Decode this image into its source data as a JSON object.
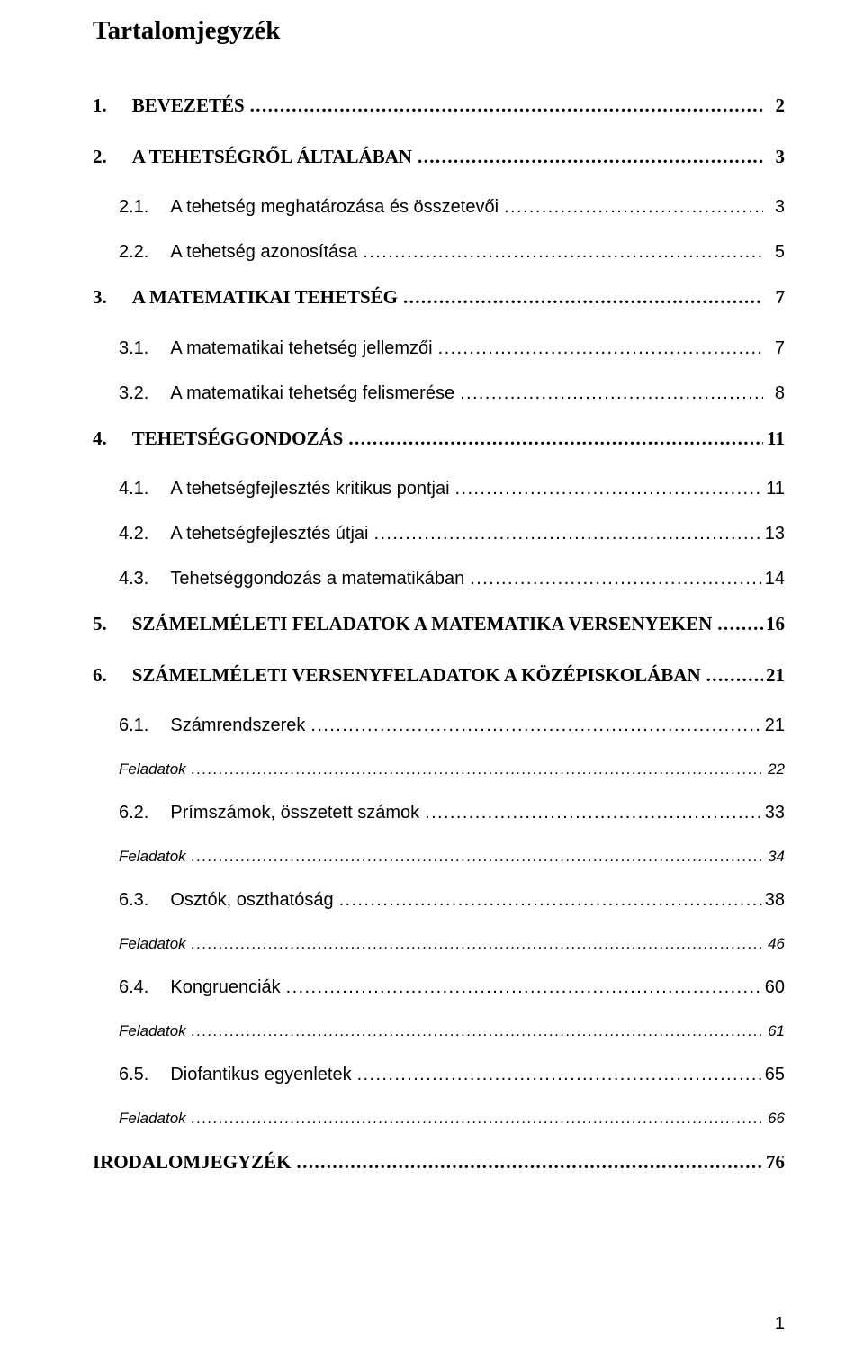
{
  "title": "Tartalomjegyzék",
  "footer_page": "1",
  "entries": [
    {
      "level": 1,
      "num": "1.",
      "label": "BEVEZETÉS",
      "page": "2"
    },
    {
      "level": 1,
      "num": "2.",
      "label": "A TEHETSÉGRŐL ÁLTALÁBAN",
      "page": "3"
    },
    {
      "level": 2,
      "num": "2.1.",
      "label": "A tehetség meghatározása és összetevői",
      "page": "3"
    },
    {
      "level": 2,
      "num": "2.2.",
      "label": "A tehetség azonosítása",
      "page": "5"
    },
    {
      "level": 1,
      "num": "3.",
      "label": "A MATEMATIKAI TEHETSÉG",
      "page": "7"
    },
    {
      "level": 2,
      "num": "3.1.",
      "label": "A matematikai tehetség jellemzői",
      "page": "7"
    },
    {
      "level": 2,
      "num": "3.2.",
      "label": "A matematikai tehetség felismerése",
      "page": "8"
    },
    {
      "level": 1,
      "num": "4.",
      "label": "TEHETSÉGGONDOZÁS",
      "page": "11"
    },
    {
      "level": 2,
      "num": "4.1.",
      "label": "A tehetségfejlesztés kritikus pontjai",
      "page": "11"
    },
    {
      "level": 2,
      "num": "4.2.",
      "label": "A tehetségfejlesztés útjai",
      "page": "13"
    },
    {
      "level": 2,
      "num": "4.3.",
      "label": "Tehetséggondozás a matematikában",
      "page": "14"
    },
    {
      "level": 1,
      "num": "5.",
      "label": "SZÁMELMÉLETI FELADATOK A MATEMATIKA VERSENYEKEN",
      "page": "16"
    },
    {
      "level": 1,
      "num": "6.",
      "label": "SZÁMELMÉLETI VERSENYFELADATOK A KÖZÉPISKOLÁBAN",
      "page": "21"
    },
    {
      "level": 2,
      "num": "6.1.",
      "label": "Számrendszerek",
      "page": "21"
    },
    {
      "level": 3,
      "num": "",
      "label": "Feladatok",
      "page": "22"
    },
    {
      "level": 2,
      "num": "6.2.",
      "label": "Prímszámok, összetett számok",
      "page": "33"
    },
    {
      "level": 3,
      "num": "",
      "label": "Feladatok",
      "page": "34"
    },
    {
      "level": 2,
      "num": "6.3.",
      "label": "Osztók, oszthatóság",
      "page": "38"
    },
    {
      "level": 3,
      "num": "",
      "label": "Feladatok",
      "page": "46"
    },
    {
      "level": 2,
      "num": "6.4.",
      "label": "Kongruenciák",
      "page": "60"
    },
    {
      "level": 3,
      "num": "",
      "label": "Feladatok",
      "page": "61"
    },
    {
      "level": 2,
      "num": "6.5.",
      "label": "Diofantikus egyenletek",
      "page": "65"
    },
    {
      "level": 3,
      "num": "",
      "label": "Feladatok",
      "page": "66"
    },
    {
      "level": 1,
      "num": "",
      "label": "IRODALOMJEGYZÉK",
      "page": "76"
    }
  ]
}
